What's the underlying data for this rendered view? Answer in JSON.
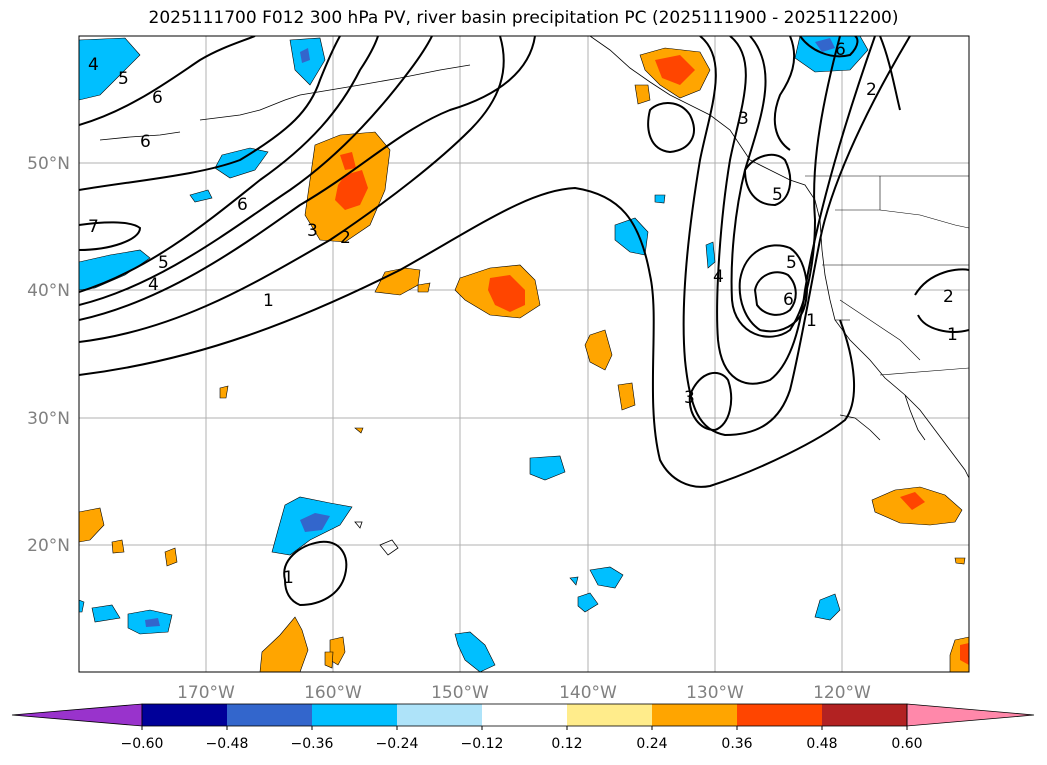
{
  "title": "2025111700 F012 300 hPa PV, river basin precipitation PC (2025111900 - 2025112200)",
  "lon_ticks": [
    "170°W",
    "160°W",
    "150°W",
    "140°W",
    "130°W",
    "120°W"
  ],
  "lat_ticks": [
    "50°N",
    "40°N",
    "30°N",
    "20°N"
  ],
  "colorbar": {
    "colors": [
      "#9933cc",
      "#000099",
      "#3366cc",
      "#00bfff",
      "#aee3f9",
      "#ffffff",
      "#ffec8b",
      "#ffa500",
      "#ff4500",
      "#b22222",
      "#ff88aa"
    ],
    "tick_labels": [
      "−0.60",
      "−0.48",
      "−0.36",
      "−0.24",
      "−0.12",
      "0.12",
      "0.24",
      "0.36",
      "0.48",
      "0.60"
    ]
  },
  "contour_labels": {
    "c4a": "4",
    "c5a": "5",
    "c6a": "6",
    "c6b": "6",
    "c7a": "7",
    "c6c": "6",
    "c3a": "3",
    "c2a": "2",
    "c5b": "5",
    "c4b": "4",
    "c1a": "1",
    "c3b": "3",
    "c5c": "5",
    "c4c": "4",
    "c6d": "6",
    "c5d": "5",
    "c3c": "3",
    "c1b": "1",
    "c2b": "2",
    "c1c": "1",
    "c6e": "6",
    "c2c": "2",
    "c1d": "1"
  },
  "colors": {
    "negative": "#00bfff",
    "negative_strong": "#3366cc",
    "positive": "#ffa500",
    "positive_strong": "#ff4500"
  }
}
